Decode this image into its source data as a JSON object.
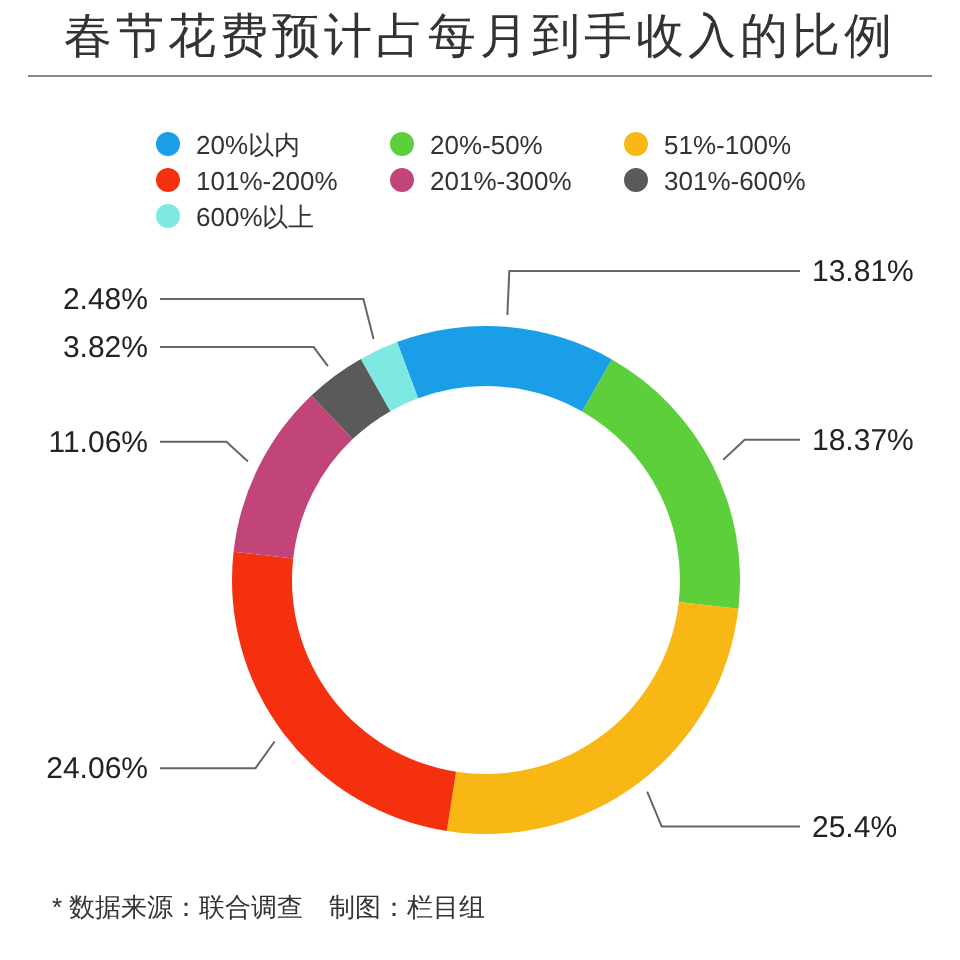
{
  "chart_data": {
    "type": "donut",
    "title": "春节花费预计占每月到手收入的比例",
    "categories": [
      "20%以内",
      "20%-50%",
      "51%-100%",
      "101%-200%",
      "201%-300%",
      "301%-600%",
      "600%以上"
    ],
    "values": [
      13.81,
      18.37,
      25.4,
      24.06,
      11.06,
      3.82,
      2.48
    ],
    "value_labels": [
      "13.81%",
      "18.37%",
      "25.4%",
      "24.06%",
      "11.06%",
      "3.82%",
      "2.48%"
    ],
    "colors": [
      "#1a9ee8",
      "#5ccf3a",
      "#f8b714",
      "#f5300f",
      "#c2457a",
      "#5a5a5a",
      "#7ee8e2"
    ],
    "legend": "top",
    "annotations": [
      "* 数据来源：联合调查　制图：栏目组"
    ]
  }
}
